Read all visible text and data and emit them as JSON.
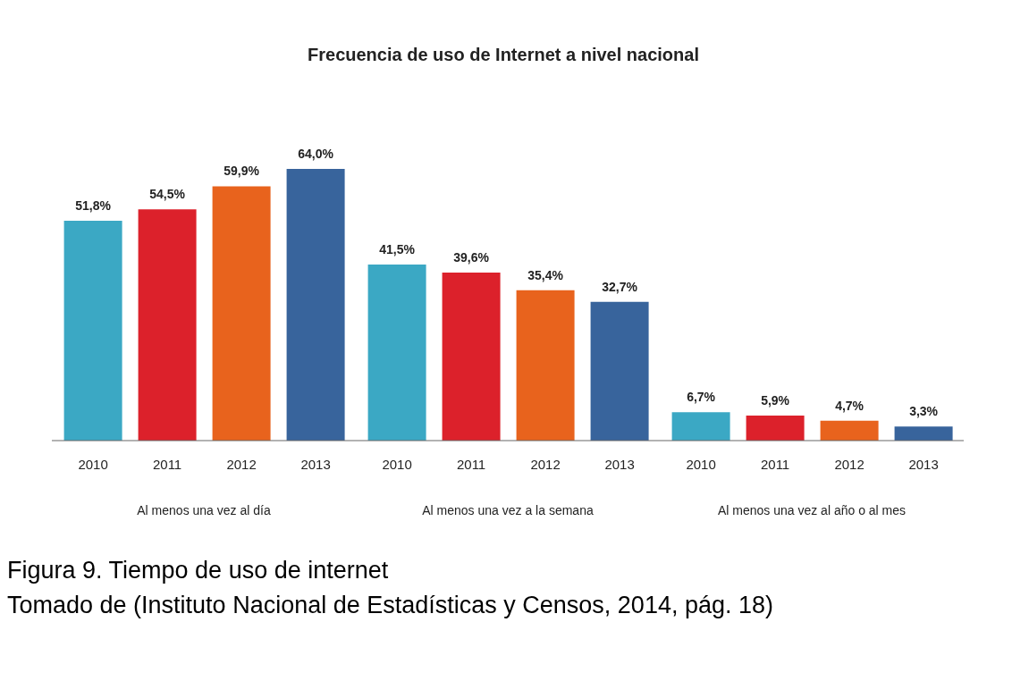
{
  "chart_data": {
    "type": "bar",
    "title": "Frecuencia de uso de Internet a nivel nacional",
    "categories": [
      "Al menos una vez al día",
      "Al menos una vez a la semana",
      "Al menos una vez al año o al mes"
    ],
    "series": [
      {
        "name": "2010",
        "color": "#3ba8c4",
        "values": [
          51.8,
          41.5,
          6.7
        ],
        "value_labels": [
          "51,8%",
          "41,5%",
          "6,7%"
        ]
      },
      {
        "name": "2011",
        "color": "#dc212b",
        "values": [
          54.5,
          39.6,
          5.9
        ],
        "value_labels": [
          "54,5%",
          "39,6%",
          "5,9%"
        ]
      },
      {
        "name": "2012",
        "color": "#e8631d",
        "values": [
          59.9,
          35.4,
          4.7
        ],
        "value_labels": [
          "59,9%",
          "35,4%",
          "4,7%"
        ]
      },
      {
        "name": "2013",
        "color": "#38649c",
        "values": [
          64.0,
          32.7,
          3.3
        ],
        "value_labels": [
          "64,0%",
          "32,7%",
          "3,3%"
        ]
      }
    ],
    "legend": false,
    "grid": false,
    "annotations": [
      "Figura 9. Tiempo de uso de internet",
      "Tomado de (Instituto Nacional de Estadísticas y Censos, 2014, pág. 18)"
    ]
  }
}
